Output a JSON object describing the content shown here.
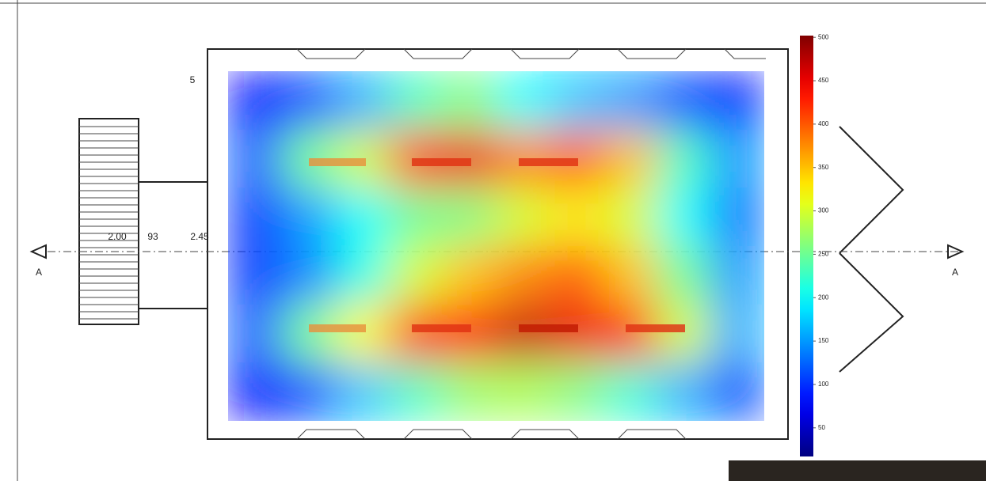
{
  "chart_data": {
    "type": "heatmap",
    "colormap": "jet",
    "grid_values": [
      [
        80,
        110,
        160,
        230,
        260,
        200,
        170,
        150,
        110,
        90
      ],
      [
        120,
        250,
        300,
        420,
        450,
        380,
        400,
        350,
        230,
        150
      ],
      [
        100,
        150,
        200,
        250,
        260,
        300,
        330,
        300,
        200,
        130
      ],
      [
        100,
        140,
        210,
        300,
        350,
        380,
        400,
        350,
        250,
        150
      ],
      [
        120,
        250,
        320,
        430,
        440,
        470,
        450,
        430,
        300,
        160
      ],
      [
        80,
        110,
        170,
        230,
        270,
        280,
        260,
        220,
        160,
        110
      ]
    ],
    "clim": [
      17,
      502
    ],
    "cticks": [
      50,
      100,
      150,
      200,
      250,
      300,
      350,
      400,
      450,
      500
    ],
    "annotations": [
      "2.00",
      "93",
      "2.45",
      "5",
      "A",
      "A"
    ]
  }
}
